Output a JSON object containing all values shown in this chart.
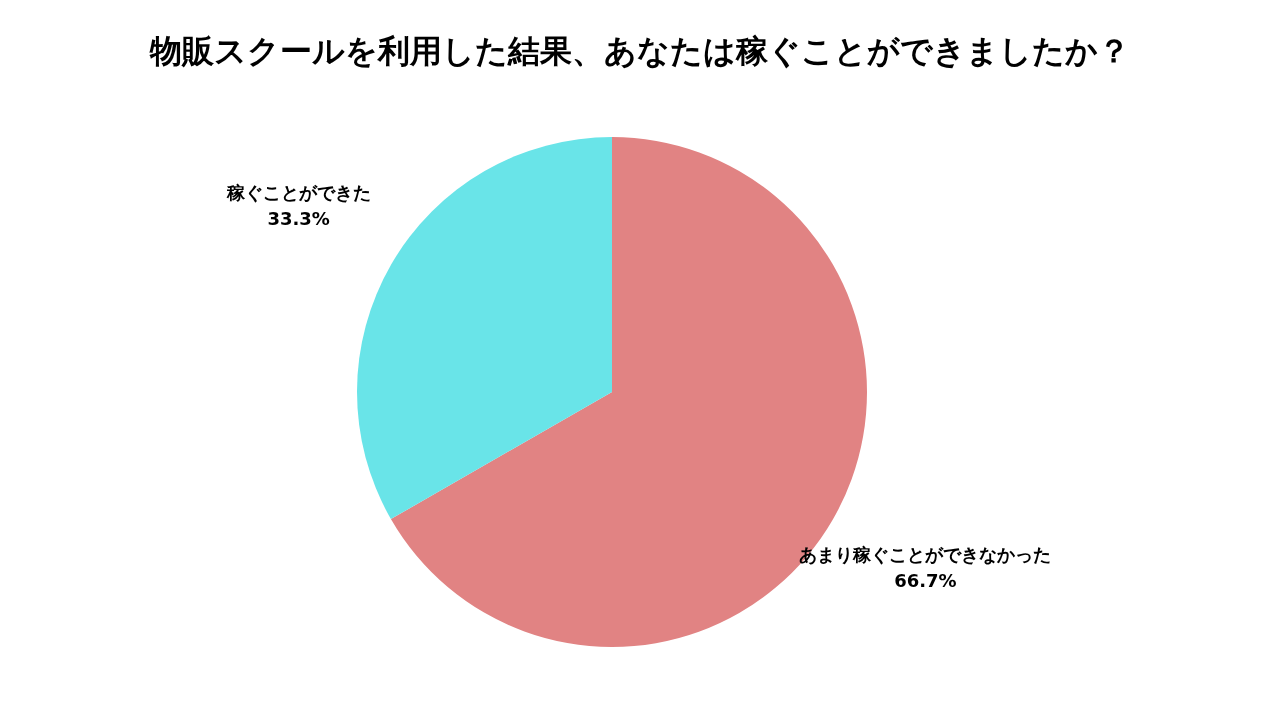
{
  "chart_data": {
    "type": "pie",
    "title": "物販スクールを利用した結果、あなたは稼ぐことができましたか？",
    "categories": [
      "あまり稼ぐことができなかった",
      "稼ぐことができた"
    ],
    "values": [
      66.7,
      33.3
    ],
    "value_labels": [
      "66.7%",
      "33.3%"
    ],
    "colors": [
      "#e18383",
      "#69e4e8"
    ]
  }
}
